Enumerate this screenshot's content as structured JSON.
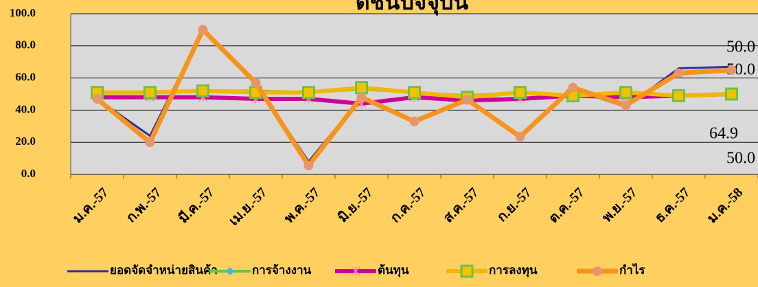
{
  "chart_data": {
    "type": "line",
    "title": "ดัชนีปัจจุบัน",
    "categories": [
      "ม.ค.-57",
      "ก.พ.-57",
      "มี.ค.-57",
      "เม.ย.-57",
      "พ.ค.-57",
      "มิ.ย.-57",
      "ก.ค.-57",
      "ส.ค.-57",
      "ก.ย.-57",
      "ต.ค.-57",
      "พ.ย.-57",
      "ธ.ค.-57",
      "ม.ค.-58"
    ],
    "series": [
      {
        "name": "ยอดจัดจำหน่ายสินค้า",
        "color": "#2e3192",
        "marker": "none",
        "values": [
          47,
          24,
          90,
          57,
          8,
          48,
          32,
          47,
          23,
          53,
          42,
          66,
          67
        ]
      },
      {
        "name": "การจ้างงาน",
        "color": "#6cc24a",
        "marker": "diamond",
        "values": [
          51,
          51,
          52,
          52,
          51,
          53,
          51,
          49,
          51,
          49,
          51,
          49,
          50
        ],
        "value_labels": [
          null,
          null,
          null,
          null,
          null,
          null,
          null,
          null,
          null,
          null,
          null,
          null,
          "50.0"
        ]
      },
      {
        "name": "ต้นทุน",
        "color": "#cc0099",
        "marker": "star",
        "values": [
          48,
          48,
          48,
          47,
          47,
          44,
          48,
          46,
          47,
          49,
          48,
          49,
          50
        ],
        "value_labels": [
          null,
          null,
          null,
          null,
          null,
          null,
          null,
          null,
          null,
          null,
          null,
          null,
          "50.0"
        ]
      },
      {
        "name": "การลงทุน",
        "color": "#f2b800",
        "marker": "square",
        "values": [
          51,
          51,
          52,
          51,
          51,
          54,
          51,
          48,
          51,
          49,
          51,
          49,
          50
        ],
        "value_labels": [
          null,
          null,
          null,
          null,
          null,
          null,
          null,
          null,
          null,
          null,
          null,
          null,
          "50.0"
        ]
      },
      {
        "name": "กำไร",
        "color": "#f7941d",
        "marker": "circle",
        "values": [
          47,
          20,
          90,
          57,
          5.5,
          48,
          33,
          46.5,
          23.5,
          54,
          43,
          63,
          64.9
        ],
        "value_labels": [
          null,
          null,
          null,
          null,
          null,
          null,
          null,
          null,
          null,
          null,
          null,
          null,
          "64.9"
        ]
      }
    ],
    "ylim": [
      0,
      100
    ],
    "yticks": [
      {
        "value": 0,
        "label": "0.0"
      },
      {
        "value": 20,
        "label": "20.0"
      },
      {
        "value": 40,
        "label": "40.0"
      },
      {
        "value": 60,
        "label": "60.0"
      },
      {
        "value": 80,
        "label": "80.0"
      },
      {
        "value": 100,
        "label": "100.0"
      }
    ],
    "grid": true,
    "legend": "bottom"
  }
}
